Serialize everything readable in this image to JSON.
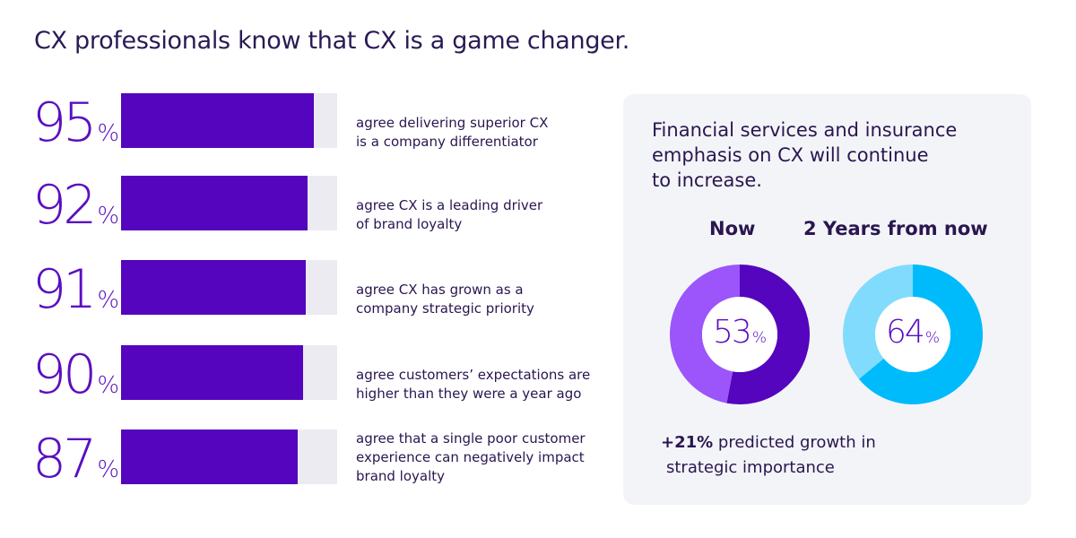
{
  "title": "CX professionals know that CX is a game changer.",
  "chart_data": [
    {
      "type": "bar",
      "orientation": "horizontal",
      "unit": "%",
      "categories": [
        "agree delivering superior CX is a company differentiator",
        "agree CX is a leading driver of brand loyalty",
        "agree CX has grown as a company strategic priority",
        "agree customers’ expectations are higher than they were a year ago",
        "agree that a single poor customer experience can negatively impact brand loyalty"
      ],
      "desc_lines": [
        [
          "agree delivering superior CX",
          "is a company differentiator"
        ],
        [
          "agree CX is a leading driver",
          "of brand loyalty"
        ],
        [
          "agree CX has grown as a",
          "company strategic priority"
        ],
        [
          "agree customers’ expectations are",
          "higher than they were a year ago"
        ],
        [
          "agree that a single poor customer",
          "experience can negatively impact",
          "brand loyalty"
        ]
      ],
      "values": [
        95,
        92,
        91,
        90,
        87
      ],
      "value_labels": [
        "95",
        "92",
        "91",
        "90",
        "87"
      ],
      "colors": {
        "fill": "#5405bd",
        "track": "#ebebf1",
        "value_text": "#5a0fc0"
      }
    },
    {
      "type": "pie",
      "variant": "donut",
      "title_lines": [
        "Financial services and insurance",
        "emphasis on CX will continue",
        "to increase."
      ],
      "charts": [
        {
          "label": "Now",
          "value": 53,
          "value_label": "53",
          "colors": {
            "value": "#5405bd",
            "rest": "#9b55fb"
          }
        },
        {
          "label": "2 Years from now",
          "value": 64,
          "value_label": "64",
          "colors": {
            "value": "#00bbfc",
            "rest": "#80dbfd"
          }
        }
      ],
      "annotation": {
        "bold": "+21%",
        "text_line1": " predicted  growth in",
        "text_line2": "strategic  importance"
      }
    }
  ],
  "percent_sign": "%",
  "colors": {
    "panel_bg": "#f3f4f7",
    "text": "#2a1650"
  }
}
